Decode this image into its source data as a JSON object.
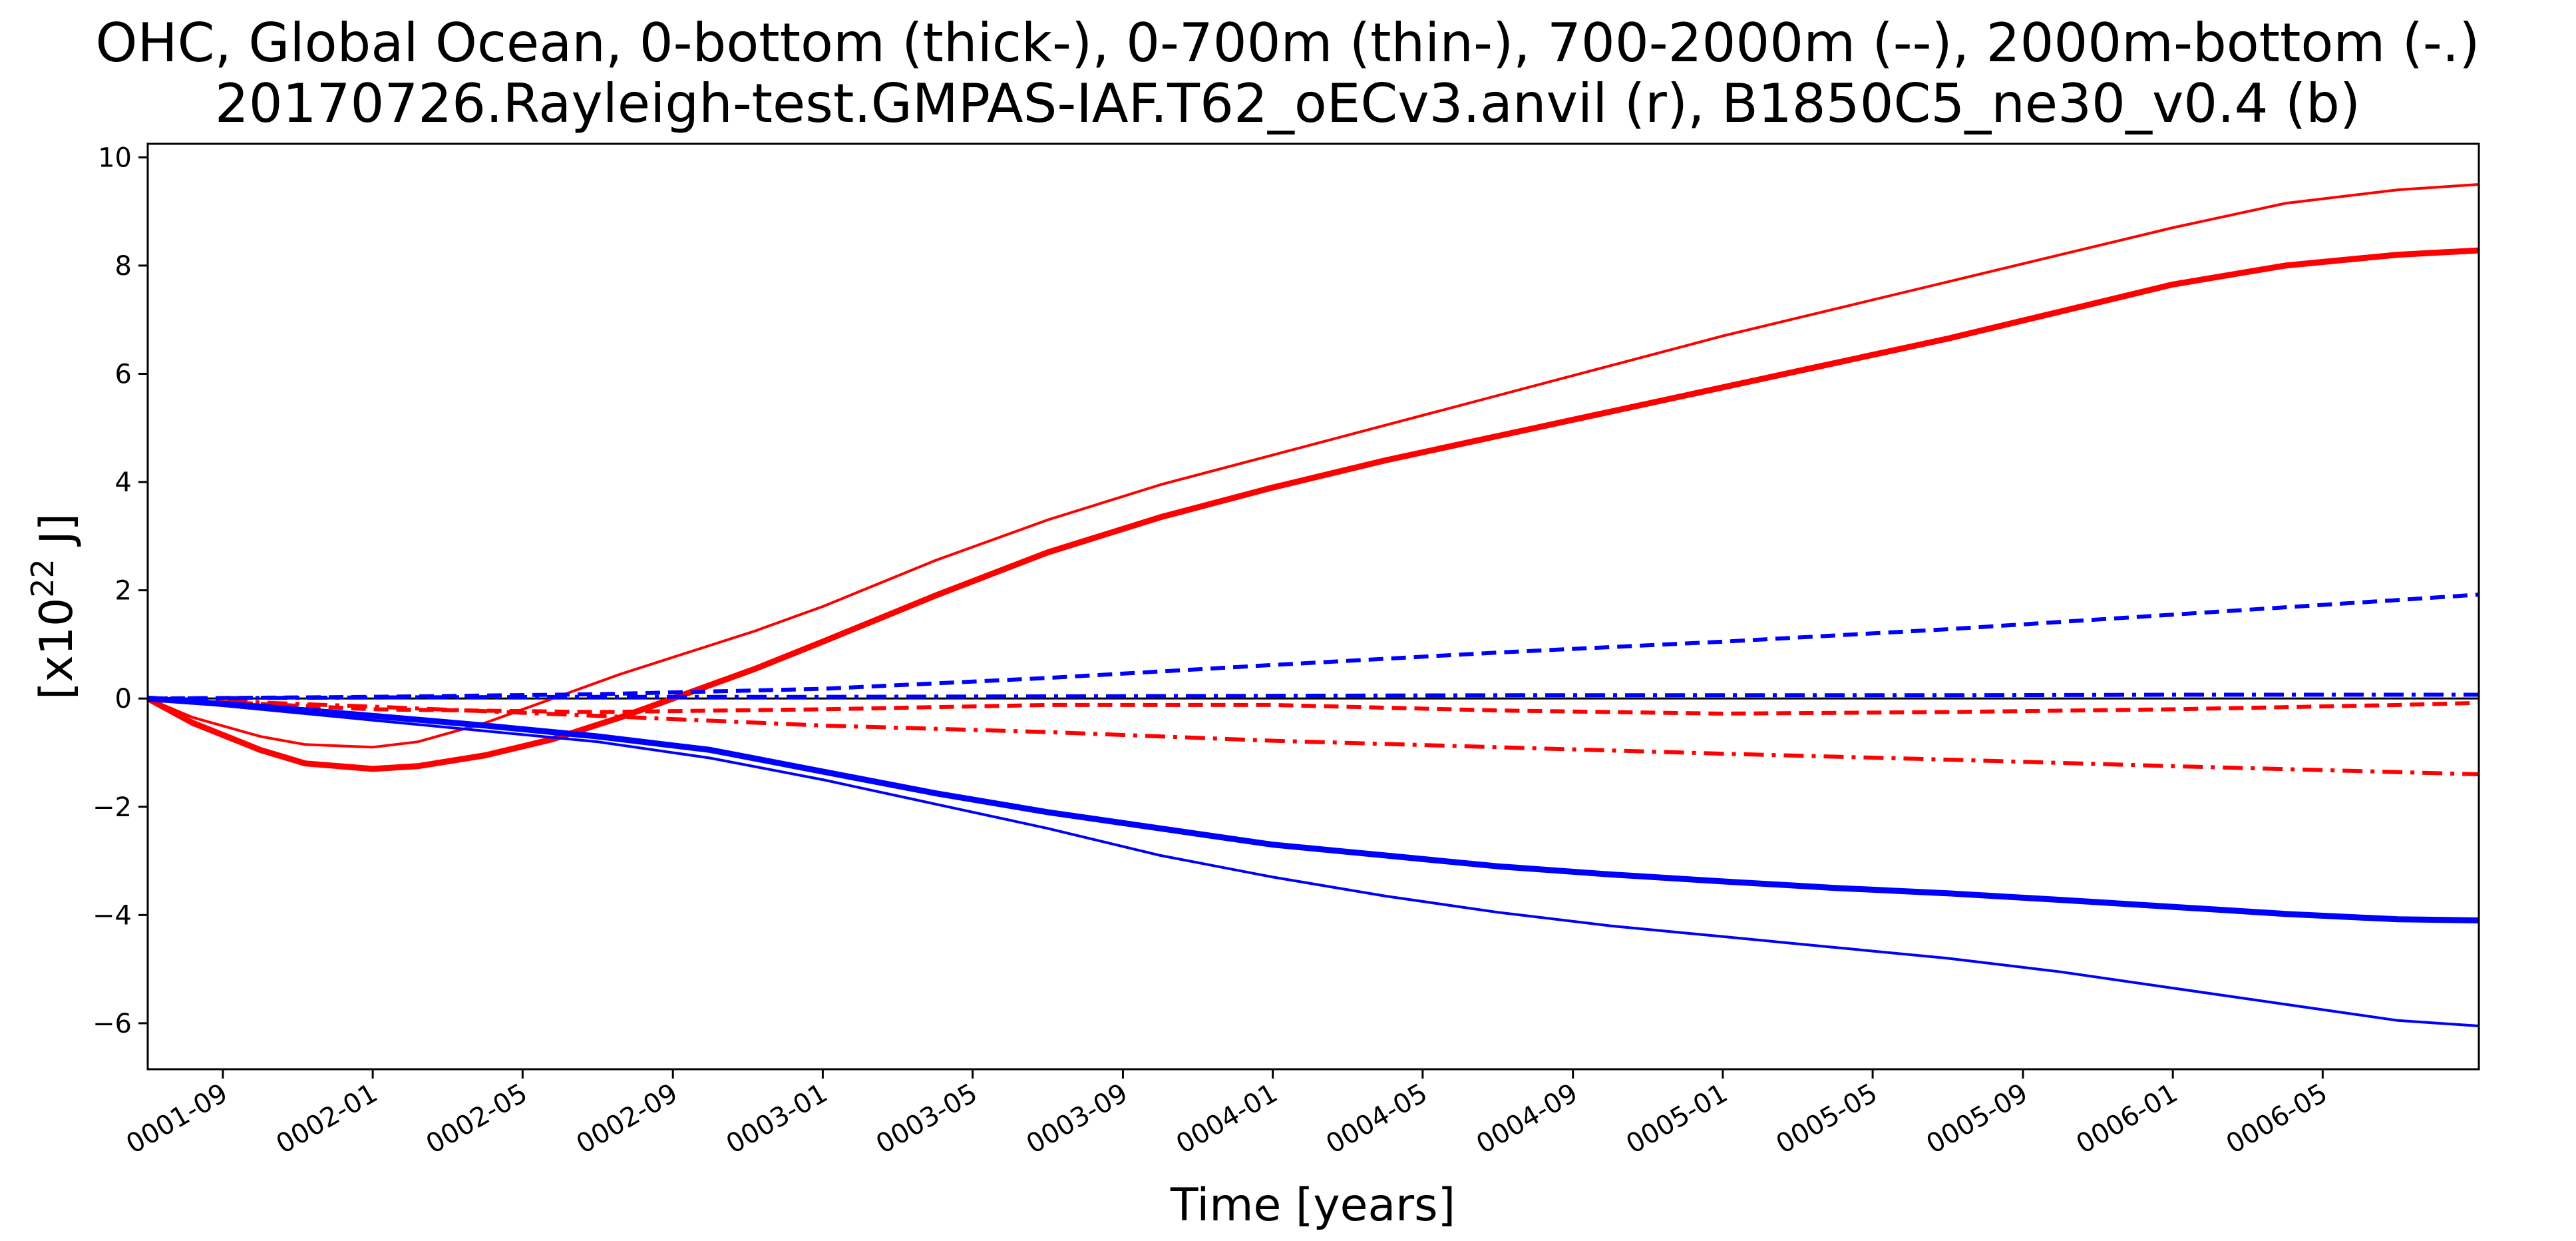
{
  "chart_data": {
    "type": "line",
    "title": "OHC, Global Ocean, 0-bottom (thick-), 0-700m (thin-), 700-2000m (--), 2000m-bottom (-.)",
    "subtitle": "20170726.Rayleigh-test.GMPAS-IAF.T62_oECv3.anvil (r), B1850C5_ne30_v0.4 (b)",
    "xlabel": "Time [years]",
    "ylabel_base": "[x10",
    "ylabel_exp": "22",
    "ylabel_unit": " J]",
    "x_unit": "decimal years",
    "xlim": [
      1.5,
      6.68
    ],
    "ylim": [
      -6.85,
      10.25
    ],
    "y_ticks": [
      -6,
      -4,
      -2,
      0,
      2,
      4,
      6,
      8,
      10
    ],
    "x_ticks": [
      {
        "value": 1.667,
        "label": "0001-09"
      },
      {
        "value": 2.0,
        "label": "0002-01"
      },
      {
        "value": 2.333,
        "label": "0002-05"
      },
      {
        "value": 2.667,
        "label": "0002-09"
      },
      {
        "value": 3.0,
        "label": "0003-01"
      },
      {
        "value": 3.333,
        "label": "0003-05"
      },
      {
        "value": 3.667,
        "label": "0003-09"
      },
      {
        "value": 4.0,
        "label": "0004-01"
      },
      {
        "value": 4.333,
        "label": "0004-05"
      },
      {
        "value": 4.667,
        "label": "0004-09"
      },
      {
        "value": 5.0,
        "label": "0005-01"
      },
      {
        "value": 5.333,
        "label": "0005-05"
      },
      {
        "value": 5.667,
        "label": "0005-09"
      },
      {
        "value": 6.0,
        "label": "0006-01"
      },
      {
        "value": 6.333,
        "label": "0006-05"
      }
    ],
    "zero_line": true,
    "grid": false,
    "legend": "none",
    "series": [
      {
        "color": "#ff0000",
        "style": "thick-solid",
        "x": [
          1.5,
          1.6,
          1.75,
          1.85,
          2.0,
          2.1,
          2.25,
          2.4,
          2.55,
          2.7,
          2.85,
          3.0,
          3.25,
          3.5,
          3.75,
          4.0,
          4.25,
          4.5,
          4.75,
          5.0,
          5.25,
          5.5,
          5.75,
          6.0,
          6.25,
          6.5,
          6.68
        ],
        "y": [
          0,
          -0.45,
          -0.95,
          -1.2,
          -1.3,
          -1.25,
          -1.05,
          -0.75,
          -0.35,
          0.1,
          0.55,
          1.05,
          1.9,
          2.7,
          3.35,
          3.9,
          4.4,
          4.85,
          5.3,
          5.75,
          6.2,
          6.65,
          7.15,
          7.65,
          8.0,
          8.2,
          8.28
        ]
      },
      {
        "color": "#ff0000",
        "style": "thin-solid",
        "x": [
          1.5,
          1.6,
          1.75,
          1.85,
          2.0,
          2.1,
          2.25,
          2.4,
          2.55,
          2.7,
          2.85,
          3.0,
          3.25,
          3.5,
          3.75,
          4.0,
          4.25,
          4.5,
          4.75,
          5.0,
          5.25,
          5.5,
          5.75,
          6.0,
          6.25,
          6.5,
          6.68
        ],
        "y": [
          0,
          -0.35,
          -0.7,
          -0.85,
          -0.9,
          -0.8,
          -0.45,
          0.0,
          0.45,
          0.85,
          1.25,
          1.7,
          2.55,
          3.3,
          3.95,
          4.5,
          5.05,
          5.6,
          6.15,
          6.7,
          7.2,
          7.7,
          8.2,
          8.7,
          9.15,
          9.4,
          9.5
        ]
      },
      {
        "color": "#ff0000",
        "style": "dashed",
        "x": [
          1.5,
          2.0,
          2.5,
          3.0,
          3.5,
          4.0,
          4.5,
          5.0,
          5.5,
          6.0,
          6.5,
          6.68
        ],
        "y": [
          0,
          -0.2,
          -0.25,
          -0.2,
          -0.12,
          -0.12,
          -0.22,
          -0.28,
          -0.25,
          -0.2,
          -0.12,
          -0.08
        ]
      },
      {
        "color": "#ff0000",
        "style": "dashdot",
        "x": [
          1.5,
          2.0,
          2.5,
          3.0,
          3.5,
          4.0,
          4.5,
          5.0,
          5.5,
          6.0,
          6.5,
          6.68
        ],
        "y": [
          0,
          -0.15,
          -0.32,
          -0.5,
          -0.62,
          -0.78,
          -0.9,
          -1.02,
          -1.13,
          -1.25,
          -1.36,
          -1.4
        ]
      },
      {
        "color": "#0000ff",
        "style": "thick-solid",
        "x": [
          1.5,
          1.75,
          2.0,
          2.25,
          2.5,
          2.75,
          3.0,
          3.25,
          3.5,
          3.75,
          4.0,
          4.25,
          4.5,
          4.75,
          5.0,
          5.25,
          5.5,
          5.75,
          6.0,
          6.25,
          6.5,
          6.68
        ],
        "y": [
          0,
          -0.15,
          -0.32,
          -0.5,
          -0.7,
          -0.95,
          -1.35,
          -1.75,
          -2.1,
          -2.4,
          -2.7,
          -2.9,
          -3.1,
          -3.25,
          -3.38,
          -3.5,
          -3.6,
          -3.72,
          -3.85,
          -3.98,
          -4.08,
          -4.1
        ]
      },
      {
        "color": "#0000ff",
        "style": "thin-solid",
        "x": [
          1.5,
          1.75,
          2.0,
          2.25,
          2.5,
          2.75,
          3.0,
          3.25,
          3.5,
          3.75,
          4.0,
          4.25,
          4.5,
          4.75,
          5.0,
          5.25,
          5.5,
          5.75,
          6.0,
          6.25,
          6.5,
          6.68
        ],
        "y": [
          0,
          -0.2,
          -0.4,
          -0.6,
          -0.8,
          -1.1,
          -1.5,
          -1.95,
          -2.4,
          -2.9,
          -3.3,
          -3.65,
          -3.95,
          -4.2,
          -4.4,
          -4.6,
          -4.8,
          -5.05,
          -5.35,
          -5.65,
          -5.95,
          -6.05
        ]
      },
      {
        "color": "#0000ff",
        "style": "dashed",
        "x": [
          1.5,
          2.0,
          2.5,
          3.0,
          3.5,
          4.0,
          4.5,
          5.0,
          5.5,
          6.0,
          6.5,
          6.68
        ],
        "y": [
          0,
          0.03,
          0.08,
          0.18,
          0.38,
          0.62,
          0.85,
          1.05,
          1.28,
          1.55,
          1.82,
          1.92
        ]
      },
      {
        "color": "#0000ff",
        "style": "dashdot",
        "x": [
          1.5,
          2.0,
          2.5,
          3.0,
          3.5,
          4.0,
          4.5,
          5.0,
          5.5,
          6.0,
          6.5,
          6.68
        ],
        "y": [
          0,
          0.02,
          0.03,
          0.03,
          0.04,
          0.05,
          0.06,
          0.06,
          0.06,
          0.07,
          0.07,
          0.07
        ]
      }
    ]
  }
}
